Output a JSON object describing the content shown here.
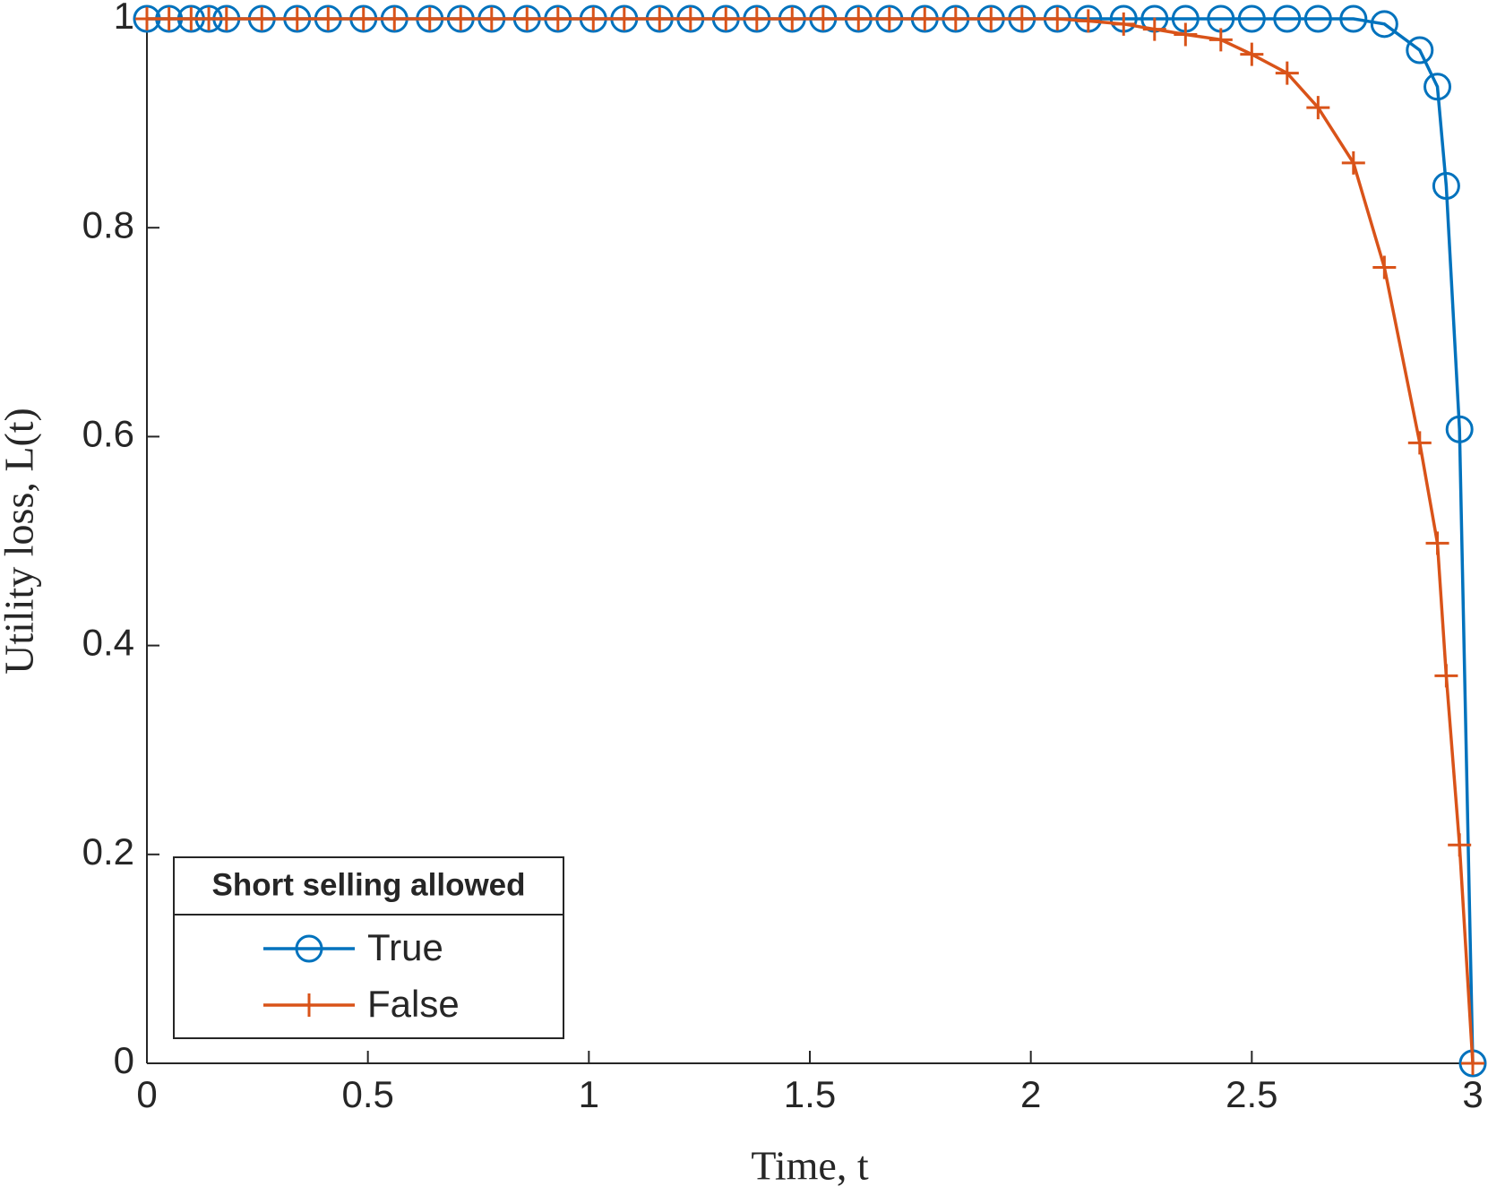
{
  "chart_data": {
    "type": "line",
    "xlabel": "Time, t",
    "ylabel": "Utility loss, L(t)",
    "x": [
      0,
      0.05,
      0.1,
      0.14,
      0.18,
      0.26,
      0.34,
      0.41,
      0.49,
      0.56,
      0.64,
      0.71,
      0.78,
      0.86,
      0.93,
      1.01,
      1.08,
      1.16,
      1.23,
      1.31,
      1.38,
      1.46,
      1.53,
      1.61,
      1.68,
      1.76,
      1.83,
      1.91,
      1.98,
      2.06,
      2.13,
      2.21,
      2.28,
      2.35,
      2.43,
      2.5,
      2.58,
      2.65,
      2.73,
      2.8,
      2.88,
      2.92,
      2.94,
      2.97,
      3.0
    ],
    "series": [
      {
        "name": "True",
        "color": "#0072bd",
        "marker": "o",
        "values": [
          1,
          1,
          1,
          1,
          1,
          1,
          1,
          1,
          1,
          1,
          1,
          1,
          1,
          1,
          1,
          1,
          1,
          1,
          1,
          1,
          1,
          1,
          1,
          1,
          1,
          1,
          1,
          1,
          1,
          1,
          1,
          1,
          1,
          1,
          1,
          1,
          1,
          1,
          1,
          0.995,
          0.97,
          0.935,
          0.84,
          0.607,
          0
        ]
      },
      {
        "name": "False",
        "color": "#d95319",
        "marker": "+",
        "values": [
          1,
          1,
          1,
          1,
          1,
          1,
          1,
          1,
          1,
          1,
          1,
          1,
          1,
          1,
          1,
          1,
          1,
          1,
          1,
          1,
          1,
          1,
          1,
          1,
          1,
          1,
          1,
          1,
          1,
          1,
          0.998,
          0.995,
          0.99,
          0.985,
          0.98,
          0.966,
          0.948,
          0.915,
          0.862,
          0.762,
          0.594,
          0.498,
          0.371,
          0.209,
          0
        ]
      }
    ],
    "legend_title": "Short selling allowed",
    "legend": "lower left",
    "xlim": [
      0,
      3
    ],
    "xticks": [
      0,
      0.5,
      1,
      1.5,
      2,
      2.5,
      3
    ],
    "ylim": [
      0,
      1
    ],
    "yticks": [
      0,
      0.2,
      0.4,
      0.6,
      0.8,
      1
    ]
  }
}
